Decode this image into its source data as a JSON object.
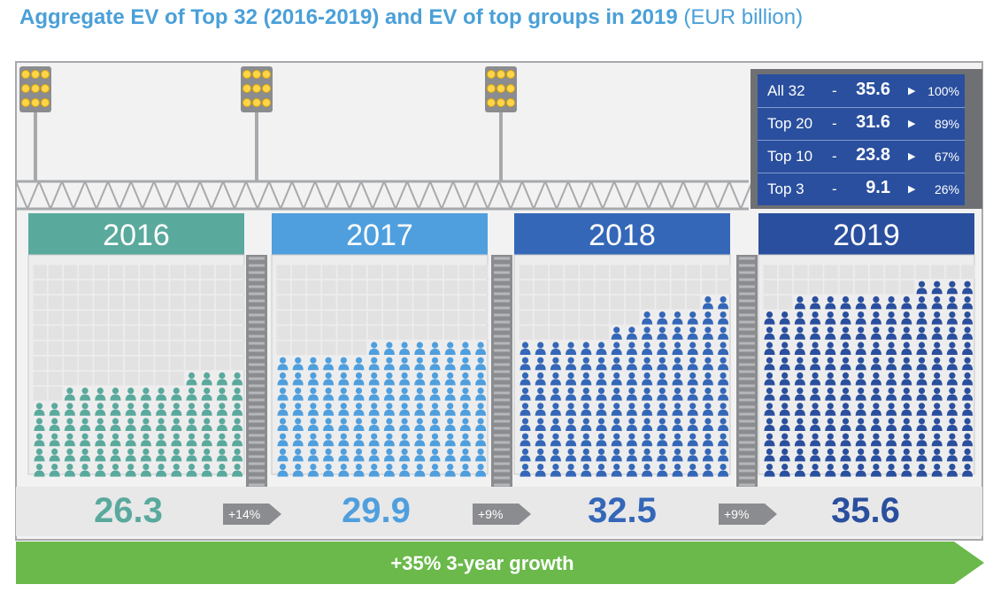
{
  "header": {
    "title": "Aggregate EV of Top 32 (2016-2019) and EV of top groups in 2019",
    "unit": "(EUR billion)"
  },
  "legend": {
    "rows": [
      {
        "label": "All 32",
        "dash": "-",
        "value": "35.6",
        "arrow": "▶",
        "share": "100%"
      },
      {
        "label": "Top 20",
        "dash": "-",
        "value": "31.6",
        "arrow": "▶",
        "share": "89%"
      },
      {
        "label": "Top 10",
        "dash": "-",
        "value": "23.8",
        "arrow": "▶",
        "share": "67%"
      },
      {
        "label": "Top 3",
        "dash": "-",
        "value": "9.1",
        "arrow": "▶",
        "share": "26%"
      }
    ]
  },
  "growth": {
    "steps": [
      "+14%",
      "+9%",
      "+9%"
    ],
    "total_label": "+35% 3-year growth"
  },
  "colors": {
    "y2016": "#5aa99d",
    "y2017": "#4f9fde",
    "y2018": "#3467b8",
    "y2019": "#2a4f9e",
    "growth_green": "#6ab94a",
    "panel_bg": "#ededed",
    "seat": "#e2e2e2",
    "frame": "#a7a9ac"
  },
  "chart_data": {
    "type": "bar",
    "title": "Aggregate EV of Top 32 (2016-2019) and EV of top groups in 2019",
    "ylabel": "EUR billion",
    "categories": [
      "2016",
      "2017",
      "2018",
      "2019"
    ],
    "values": [
      26.3,
      29.9,
      32.5,
      35.6
    ],
    "value_labels": [
      "26.3",
      "29.9",
      "32.5",
      "35.6"
    ],
    "growth_labels": [
      "+14%",
      "+9%",
      "+9%"
    ],
    "total_growth": "+35% 3-year growth",
    "top_groups_2019": [
      {
        "group": "All 32",
        "value": 35.6,
        "share_pct": 100
      },
      {
        "group": "Top 20",
        "value": 31.6,
        "share_pct": 89
      },
      {
        "group": "Top 10",
        "value": 23.8,
        "share_pct": 67
      },
      {
        "group": "Top 3",
        "value": 9.1,
        "share_pct": 26
      }
    ],
    "icon_columns_height_in_rows": [
      [
        5,
        5,
        6,
        6,
        6,
        6,
        6,
        6,
        6,
        6,
        7,
        7,
        7,
        7
      ],
      [
        8,
        8,
        8,
        8,
        8,
        8,
        9,
        9,
        9,
        9,
        9,
        9,
        9,
        9
      ],
      [
        9,
        9,
        9,
        9,
        9,
        9,
        10,
        10,
        11,
        11,
        11,
        11,
        12,
        12
      ],
      [
        11,
        11,
        12,
        12,
        12,
        12,
        12,
        12,
        12,
        12,
        13,
        13,
        13,
        13
      ]
    ],
    "legend": [
      "2016",
      "2017",
      "2018",
      "2019"
    ]
  }
}
